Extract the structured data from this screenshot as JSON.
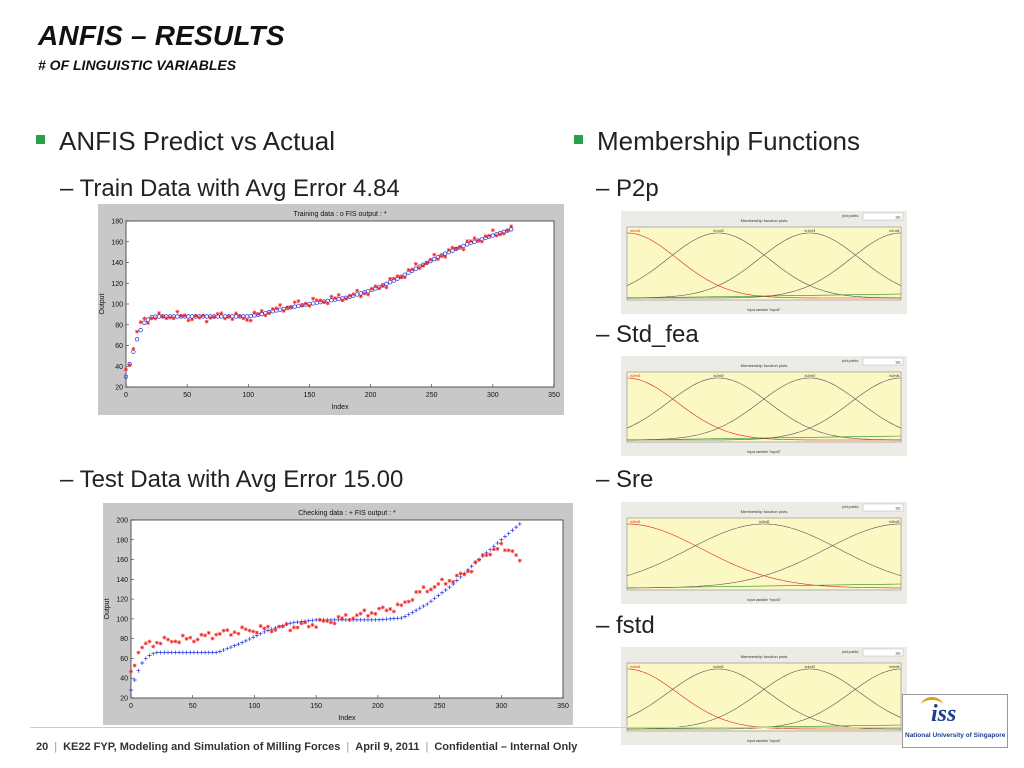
{
  "slide": {
    "title": "ANFIS – RESULTS",
    "subtitle": "# OF LINGUISTIC VARIABLES",
    "left_bullet": "ANFIS Predict vs Actual",
    "left_sub1": "– Train Data with Avg Error 4.84",
    "left_sub2": "– Test Data with Avg Error 15.00",
    "right_bullet": "Membership Functions",
    "right_sub1": "– P2p",
    "right_sub2": "– Std_fea",
    "right_sub3": "– Sre",
    "right_sub4": "– fstd",
    "accent": "#2aa04a"
  },
  "footer": {
    "page": "20",
    "course": "KE22 FYP, Modeling and Simulation of Milling Forces",
    "date": "April 9, 2011",
    "confidential": "Confidential – Internal Only"
  },
  "logo": {
    "text": "iss",
    "caption": "National University of Singapore"
  },
  "chart_data": [
    {
      "type": "scatter",
      "title": "Training data : o   FIS output : *",
      "xlabel": "Index",
      "ylabel": "Output",
      "xlim": [
        0,
        350
      ],
      "ylim": [
        20,
        180
      ],
      "xticks": [
        0,
        50,
        100,
        150,
        200,
        250,
        300,
        350
      ],
      "yticks": [
        20,
        40,
        60,
        80,
        100,
        120,
        140,
        160,
        180
      ],
      "series": [
        {
          "marker": "o",
          "color": "#2233dd",
          "x": [
            0,
            5,
            10,
            15,
            20,
            25,
            30,
            40,
            60,
            80,
            100,
            110,
            120,
            140,
            160,
            180,
            200,
            220,
            240,
            260,
            280,
            300,
            315
          ],
          "y": [
            30,
            50,
            70,
            82,
            87,
            88,
            88,
            88,
            88,
            88,
            88,
            90,
            93,
            98,
            102,
            106,
            113,
            123,
            136,
            148,
            158,
            166,
            172
          ]
        },
        {
          "marker": "*",
          "color": "#ee2222",
          "x": [
            0,
            5,
            10,
            15,
            20,
            25,
            30,
            40,
            60,
            80,
            100,
            110,
            120,
            140,
            160,
            180,
            200,
            220,
            240,
            260,
            280,
            300,
            315
          ],
          "y": [
            35,
            52,
            78,
            84,
            86,
            88,
            87,
            89,
            86,
            89,
            86,
            91,
            94,
            100,
            103,
            107,
            112,
            124,
            137,
            148,
            159,
            167,
            171
          ]
        }
      ]
    },
    {
      "type": "scatter",
      "title": "Checking data : +   FIS output : *",
      "xlabel": "Index",
      "ylabel": "Output",
      "xlim": [
        0,
        350
      ],
      "ylim": [
        20,
        200
      ],
      "xticks": [
        0,
        50,
        100,
        150,
        200,
        250,
        300,
        350
      ],
      "yticks": [
        20,
        40,
        60,
        80,
        100,
        120,
        140,
        160,
        180,
        200
      ],
      "series": [
        {
          "marker": "+",
          "color": "#2233dd",
          "x": [
            0,
            5,
            10,
            15,
            20,
            30,
            50,
            70,
            90,
            110,
            130,
            150,
            170,
            200,
            220,
            240,
            260,
            280,
            300,
            315
          ],
          "y": [
            28,
            45,
            58,
            63,
            66,
            66,
            66,
            66,
            76,
            88,
            96,
            99,
            99,
            99,
            101,
            115,
            134,
            158,
            180,
            196
          ]
        },
        {
          "marker": "*",
          "color": "#ee2222",
          "x": [
            0,
            5,
            10,
            15,
            20,
            30,
            50,
            70,
            90,
            110,
            130,
            150,
            170,
            200,
            220,
            230,
            250,
            270,
            290,
            300,
            310,
            315
          ],
          "y": [
            45,
            65,
            72,
            75,
            76,
            78,
            80,
            85,
            88,
            90,
            92,
            95,
            100,
            108,
            113,
            125,
            135,
            145,
            168,
            172,
            170,
            155
          ]
        }
      ]
    },
    {
      "type": "line",
      "title": "Membership function plots",
      "xlabel": "input variable \"input1\"",
      "series_labels": [
        "in1mf1",
        "in1mf2",
        "in1mf3",
        "in1mf4"
      ],
      "control_label": "plot points:",
      "control_value": "181"
    },
    {
      "type": "line",
      "title": "Membership function plots",
      "xlabel": "input variable \"input2\"",
      "series_labels": [
        "in2mf1",
        "in2mf2",
        "in2mf3",
        "in2mf4"
      ],
      "control_label": "plot points:",
      "control_value": "181"
    },
    {
      "type": "line",
      "title": "Membership function plots",
      "xlabel": "input variable \"input3\"",
      "series_labels": [
        "in3mf1",
        "in3mf2",
        "in3mf3"
      ],
      "control_label": "plot points:",
      "control_value": "181"
    },
    {
      "type": "line",
      "title": "Membership function plots",
      "xlabel": "input variable \"input4\"",
      "series_labels": [
        "in4mf1",
        "in4mf2",
        "in4mf3",
        "in4mf4"
      ],
      "control_label": "plot points:",
      "control_value": "181"
    }
  ]
}
